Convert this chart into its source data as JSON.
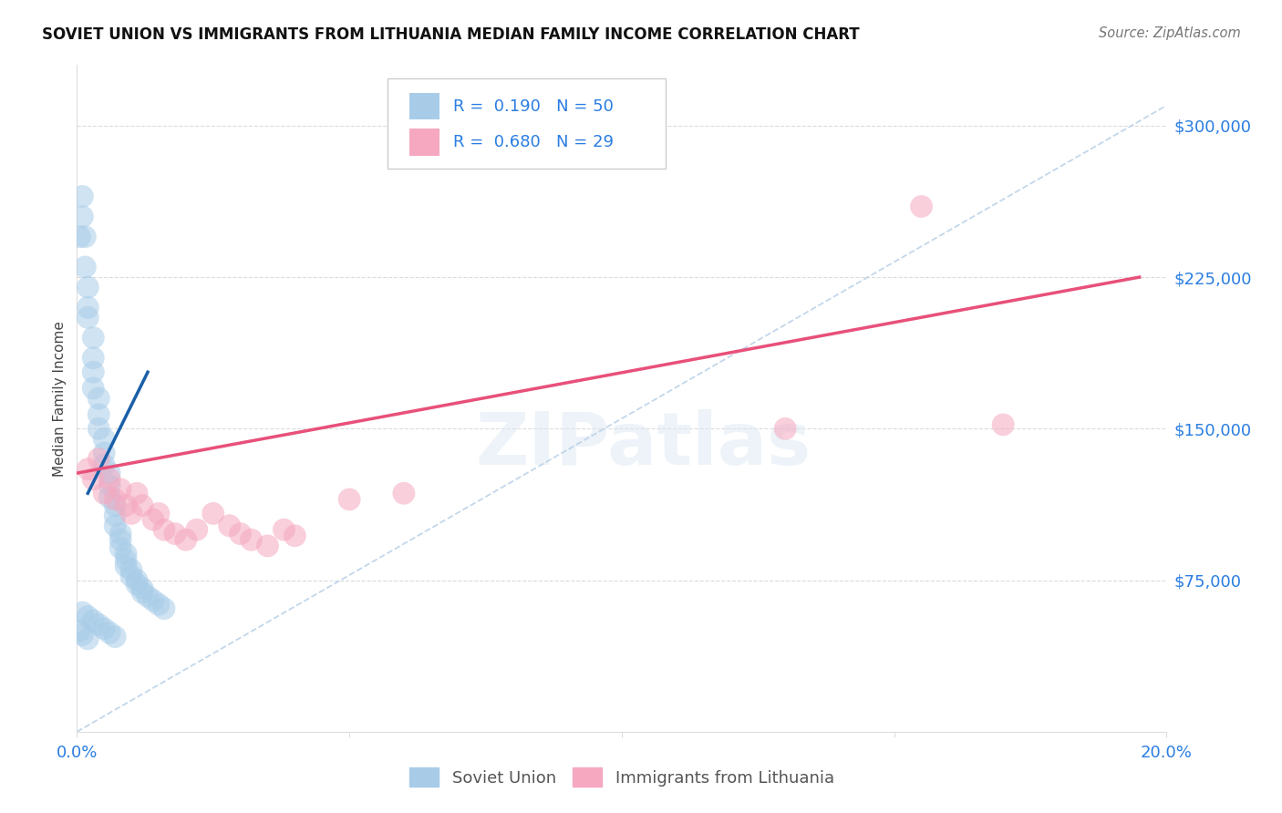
{
  "title": "SOVIET UNION VS IMMIGRANTS FROM LITHUANIA MEDIAN FAMILY INCOME CORRELATION CHART",
  "source": "Source: ZipAtlas.com",
  "ylabel": "Median Family Income",
  "xlim": [
    0.0,
    0.2
  ],
  "ylim": [
    0,
    330000
  ],
  "yticks": [
    75000,
    150000,
    225000,
    300000
  ],
  "ytick_labels": [
    "$75,000",
    "$150,000",
    "$225,000",
    "$300,000"
  ],
  "xtick_labels": [
    "0.0%",
    "",
    "",
    "",
    "20.0%"
  ],
  "color_blue_fill": "#a8cce8",
  "color_pink_fill": "#f5a8c0",
  "color_blue_line": "#1a5fa8",
  "color_pink_line": "#e8507a",
  "color_blue_text": "#2a7de1",
  "color_dashed": "#b8d0e8",
  "color_grid": "#cccccc",
  "watermark": "ZIPatlas",
  "legend_r1": "R =  0.190",
  "legend_n1": "N = 50",
  "legend_r2": "R =  0.680",
  "legend_n2": "N = 29",
  "soviet_x": [
    0.0005,
    0.001,
    0.001,
    0.0015,
    0.0015,
    0.002,
    0.002,
    0.002,
    0.003,
    0.003,
    0.003,
    0.003,
    0.004,
    0.004,
    0.004,
    0.005,
    0.005,
    0.005,
    0.006,
    0.006,
    0.006,
    0.007,
    0.007,
    0.007,
    0.008,
    0.008,
    0.008,
    0.009,
    0.009,
    0.009,
    0.01,
    0.01,
    0.011,
    0.011,
    0.012,
    0.012,
    0.013,
    0.014,
    0.015,
    0.016,
    0.001,
    0.002,
    0.003,
    0.004,
    0.005,
    0.006,
    0.007,
    0.0005,
    0.001,
    0.002
  ],
  "soviet_y": [
    245000,
    255000,
    265000,
    245000,
    230000,
    220000,
    210000,
    205000,
    195000,
    185000,
    178000,
    170000,
    165000,
    157000,
    150000,
    145000,
    138000,
    132000,
    128000,
    122000,
    116000,
    112000,
    107000,
    102000,
    98000,
    95000,
    91000,
    88000,
    85000,
    82000,
    80000,
    77000,
    75000,
    73000,
    71000,
    69000,
    67000,
    65000,
    63000,
    61000,
    59000,
    57000,
    55000,
    53000,
    51000,
    49000,
    47000,
    50000,
    48000,
    46000
  ],
  "lithuania_x": [
    0.002,
    0.003,
    0.004,
    0.005,
    0.006,
    0.007,
    0.008,
    0.009,
    0.01,
    0.011,
    0.012,
    0.014,
    0.015,
    0.016,
    0.018,
    0.02,
    0.022,
    0.025,
    0.028,
    0.03,
    0.032,
    0.035,
    0.038,
    0.04,
    0.05,
    0.06,
    0.13,
    0.155,
    0.17
  ],
  "lithuania_y": [
    130000,
    125000,
    135000,
    118000,
    125000,
    115000,
    120000,
    112000,
    108000,
    118000,
    112000,
    105000,
    108000,
    100000,
    98000,
    95000,
    100000,
    108000,
    102000,
    98000,
    95000,
    92000,
    100000,
    97000,
    115000,
    118000,
    150000,
    260000,
    152000
  ],
  "blue_trend_x": [
    0.002,
    0.013
  ],
  "blue_trend_y": [
    118000,
    178000
  ],
  "pink_trend_x": [
    0.0,
    0.195
  ],
  "pink_trend_y": [
    128000,
    225000
  ]
}
